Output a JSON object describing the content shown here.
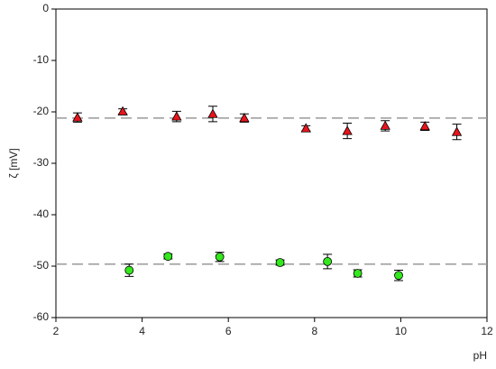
{
  "chart_data": {
    "type": "scatter",
    "x_label": "pH",
    "y_label": "ζ [mV]",
    "xlim": [
      2,
      12
    ],
    "xticks": [
      2,
      4,
      6,
      8,
      10,
      12
    ],
    "ylim": [
      -60,
      0
    ],
    "yticks": [
      -60,
      -50,
      -40,
      -30,
      -20,
      -10,
      0
    ],
    "reference_lines": [
      -21.2,
      -49.6
    ],
    "reference_color": "#999999",
    "series": [
      {
        "color": "#e8141c",
        "marker": "triangle",
        "x": [
          2.5,
          3.55,
          4.8,
          5.64,
          6.37,
          7.8,
          8.76,
          9.64,
          10.56,
          11.3
        ],
        "values": [
          -21.1,
          -19.9,
          -20.9,
          -20.4,
          -21.2,
          -23.2,
          -23.7,
          -22.7,
          -22.8,
          -23.9
        ],
        "errors": [
          0.9,
          0.5,
          1.0,
          1.5,
          0.8,
          0.5,
          1.5,
          1.0,
          0.8,
          1.5
        ]
      },
      {
        "color": "#33e81c",
        "marker": "circle",
        "x": [
          3.7,
          4.6,
          5.8,
          7.2,
          8.3,
          9.0,
          9.95
        ],
        "values": [
          -50.8,
          -48.1,
          -48.2,
          -49.3,
          -49.1,
          -51.4,
          -51.8
        ],
        "errors": [
          1.2,
          0.5,
          0.9,
          0.5,
          1.4,
          0.7,
          1.0
        ]
      }
    ]
  }
}
